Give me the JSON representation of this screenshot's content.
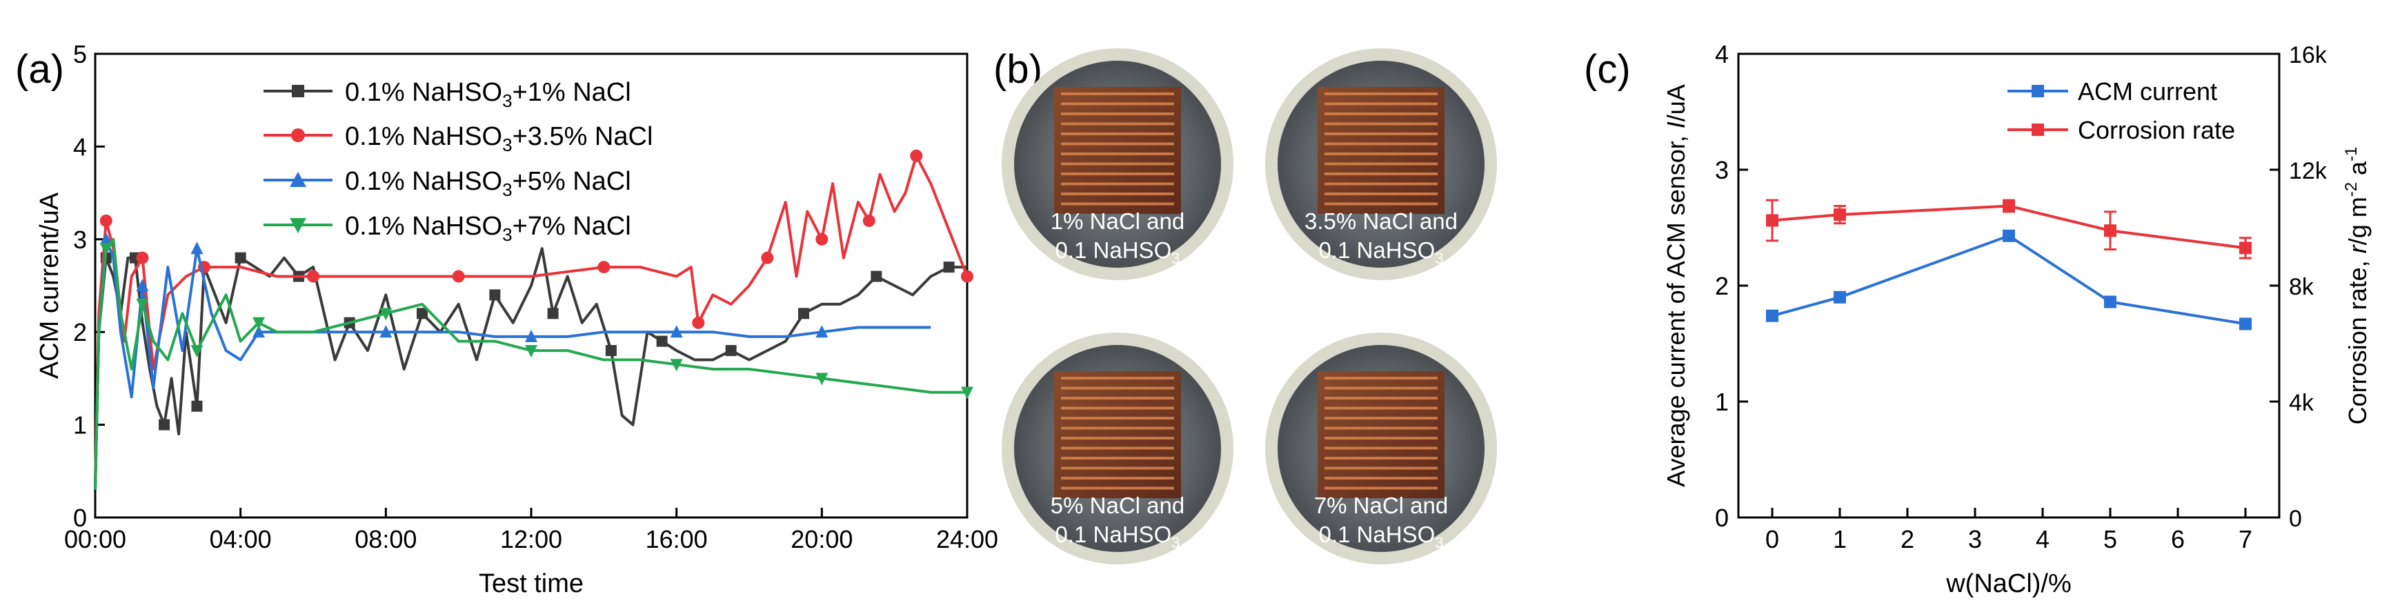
{
  "panel_labels": {
    "a": "(a)",
    "b": "(b)",
    "c": "(c)"
  },
  "colors": {
    "black": "#3a3a3a",
    "red": "#e8343a",
    "blue": "#2a72d6",
    "green": "#25a852",
    "axis": "#000000",
    "dish_rim": "#d9d9cc",
    "dish_bg": "#6f7478",
    "specimen": "#7a3a25",
    "stripe": "#d9864f"
  },
  "photos": {
    "items": [
      {
        "line1": "1% NaCl and",
        "line2_main": "0.1 NaHSO",
        "line2_sub": "3"
      },
      {
        "line1": "3.5% NaCl and",
        "line2_main": "0.1 NaHSO",
        "line2_sub": "3"
      },
      {
        "line1": "5% NaCl and",
        "line2_main": "0.1 NaHSO",
        "line2_sub": "3"
      },
      {
        "line1": "7% NaCl and",
        "line2_main": "0.1 NaHSO",
        "line2_sub": "3"
      }
    ]
  },
  "chart_data": [
    {
      "id": "a",
      "type": "line",
      "xlabel": "Test time",
      "ylabel": "ACM current/uA",
      "xlim": [
        0,
        24
      ],
      "ylim": [
        0,
        5
      ],
      "xticks": [
        0,
        4,
        8,
        12,
        16,
        20,
        24
      ],
      "xtick_labels": [
        "00:00",
        "04:00",
        "08:00",
        "12:00",
        "16:00",
        "20:00",
        "24:00"
      ],
      "yticks": [
        0,
        1,
        2,
        3,
        4,
        5
      ],
      "ytick_labels": [
        "0",
        "1",
        "2",
        "3",
        "4",
        "5"
      ],
      "legend_position": "top-center",
      "series": [
        {
          "name_pre": "0.1% NaHSO",
          "name_sub": "3",
          "name_post": "+1% NaCl",
          "color": "black",
          "marker": "square",
          "x": [
            0,
            0.1,
            0.3,
            0.5,
            0.7,
            0.9,
            1.1,
            1.3,
            1.5,
            1.7,
            1.9,
            2.1,
            2.3,
            2.5,
            2.8,
            3.0,
            3.3,
            3.6,
            4.0,
            4.4,
            4.8,
            5.2,
            5.6,
            6.0,
            6.3,
            6.6,
            7.0,
            7.5,
            8.0,
            8.5,
            9.0,
            9.5,
            10.0,
            10.5,
            11.0,
            11.5,
            12.0,
            12.3,
            12.6,
            13.0,
            13.4,
            13.8,
            14.2,
            14.5,
            14.8,
            15.2,
            15.6,
            16.0,
            16.5,
            17.0,
            17.5,
            18.0,
            18.5,
            19.0,
            19.5,
            20.0,
            20.5,
            21.0,
            21.5,
            22.0,
            22.5,
            23.0,
            23.5,
            24.0
          ],
          "y": [
            0.3,
            2.0,
            2.8,
            2.6,
            2.2,
            2.8,
            2.8,
            2.1,
            1.6,
            1.2,
            1.0,
            1.5,
            0.9,
            2.0,
            1.2,
            2.7,
            2.4,
            2.1,
            2.8,
            2.7,
            2.6,
            2.8,
            2.6,
            2.7,
            2.2,
            1.7,
            2.1,
            1.8,
            2.4,
            1.6,
            2.2,
            2.0,
            2.3,
            1.7,
            2.4,
            2.1,
            2.5,
            2.9,
            2.2,
            2.6,
            2.1,
            2.3,
            1.8,
            1.1,
            1.0,
            2.0,
            1.9,
            1.8,
            1.7,
            1.7,
            1.8,
            1.7,
            1.8,
            1.9,
            2.2,
            2.3,
            2.3,
            2.4,
            2.6,
            2.5,
            2.4,
            2.6,
            2.7,
            2.7
          ]
        },
        {
          "name_pre": "0.1% NaHSO",
          "name_sub": "3",
          "name_post": "+3.5% NaCl",
          "color": "red",
          "marker": "circle",
          "x": [
            0,
            0.1,
            0.3,
            0.5,
            0.8,
            1.0,
            1.3,
            1.6,
            2.0,
            2.5,
            3.0,
            3.5,
            4.0,
            5.0,
            6.0,
            7.0,
            8.0,
            9.0,
            10.0,
            11.0,
            12.0,
            13.0,
            14.0,
            15.0,
            16.0,
            16.4,
            16.6,
            17.0,
            17.5,
            18.0,
            18.5,
            19.0,
            19.3,
            19.6,
            20.0,
            20.3,
            20.6,
            21.0,
            21.3,
            21.6,
            22.0,
            22.3,
            22.6,
            23.0,
            23.3,
            23.6,
            24.0
          ],
          "y": [
            0.4,
            2.2,
            3.2,
            2.9,
            1.9,
            2.6,
            2.8,
            1.6,
            2.4,
            2.6,
            2.7,
            2.7,
            2.7,
            2.6,
            2.6,
            2.6,
            2.6,
            2.6,
            2.6,
            2.6,
            2.6,
            2.65,
            2.7,
            2.7,
            2.6,
            2.7,
            2.1,
            2.4,
            2.3,
            2.5,
            2.8,
            3.4,
            2.6,
            3.3,
            3.0,
            3.6,
            2.8,
            3.4,
            3.2,
            3.7,
            3.3,
            3.5,
            3.9,
            3.6,
            3.3,
            3.0,
            2.6
          ]
        },
        {
          "name_pre": "0.1% NaHSO",
          "name_sub": "3",
          "name_post": "+5% NaCl",
          "color": "blue",
          "marker": "triangle-up",
          "x": [
            0,
            0.1,
            0.3,
            0.5,
            0.7,
            1.0,
            1.3,
            1.6,
            2.0,
            2.4,
            2.8,
            3.2,
            3.6,
            4.0,
            4.5,
            5.0,
            6.0,
            7.0,
            8.0,
            9.0,
            10.0,
            11.0,
            12.0,
            13.0,
            14.0,
            15.0,
            16.0,
            17.0,
            18.0,
            19.0,
            20.0,
            21.0,
            22.0,
            23.0
          ],
          "y": [
            0.3,
            2.0,
            3.0,
            2.8,
            2.0,
            1.3,
            2.5,
            1.4,
            2.7,
            1.8,
            2.9,
            2.2,
            1.8,
            1.7,
            2.0,
            2.0,
            2.0,
            2.0,
            2.0,
            2.0,
            2.0,
            1.95,
            1.95,
            1.95,
            2.0,
            2.0,
            2.0,
            2.0,
            1.95,
            1.95,
            2.0,
            2.05,
            2.05,
            2.05
          ]
        },
        {
          "name_pre": "0.1% NaHSO",
          "name_sub": "3",
          "name_post": "+7% NaCl",
          "color": "green",
          "marker": "triangle-down",
          "x": [
            0,
            0.1,
            0.3,
            0.5,
            0.7,
            1.0,
            1.3,
            1.6,
            2.0,
            2.4,
            2.8,
            3.2,
            3.6,
            4.0,
            4.5,
            5.0,
            6.0,
            7.0,
            8.0,
            9.0,
            10.0,
            11.0,
            12.0,
            13.0,
            14.0,
            15.0,
            16.0,
            17.0,
            18.0,
            19.0,
            20.0,
            21.0,
            22.0,
            23.0,
            24.0
          ],
          "y": [
            0.3,
            2.0,
            2.9,
            3.0,
            2.2,
            1.6,
            2.3,
            1.9,
            1.7,
            2.2,
            1.8,
            2.1,
            2.4,
            1.9,
            2.1,
            2.0,
            2.0,
            2.1,
            2.2,
            2.3,
            1.9,
            1.9,
            1.8,
            1.8,
            1.7,
            1.7,
            1.65,
            1.6,
            1.6,
            1.55,
            1.5,
            1.45,
            1.4,
            1.35,
            1.35
          ]
        }
      ]
    },
    {
      "id": "c",
      "type": "line",
      "xlabel": "w(NaCl)/%",
      "ylabel_left": "Average current of ACM sensor, I/uA",
      "ylabel_left_pre": "Average current of ACM sensor, ",
      "ylabel_left_italic": "I",
      "ylabel_left_post": "/uA",
      "ylabel_right_pre": "Corrosion rate, ",
      "ylabel_right_italic": "r",
      "ylabel_right_mid": "/g m",
      "ylabel_right_sup1": "-2",
      "ylabel_right_mid2": " a",
      "ylabel_right_sup2": "-1",
      "xlim": [
        -0.5,
        7.5
      ],
      "ylim_left": [
        0,
        4
      ],
      "ylim_right": [
        0,
        16000
      ],
      "xticks": [
        0,
        1,
        2,
        3,
        4,
        5,
        6,
        7
      ],
      "xtick_labels": [
        "0",
        "1",
        "2",
        "3",
        "4",
        "5",
        "6",
        "7"
      ],
      "yticks_left": [
        0,
        1,
        2,
        3,
        4
      ],
      "ytick_labels_left": [
        "0",
        "1",
        "2",
        "3",
        "4"
      ],
      "yticks_right": [
        0,
        4000,
        8000,
        12000,
        16000
      ],
      "ytick_labels_right": [
        "0",
        "4k",
        "8k",
        "12k",
        "16k"
      ],
      "legend_position": "top-right",
      "series": [
        {
          "name": "ACM current",
          "color": "blue",
          "marker": "square",
          "axis": "left",
          "x": [
            0,
            1,
            3.5,
            5,
            7
          ],
          "y": [
            1.74,
            1.9,
            2.43,
            1.86,
            1.67
          ]
        },
        {
          "name": "Corrosion rate",
          "color": "red",
          "marker": "square",
          "axis": "right",
          "x": [
            0,
            1,
            3.5,
            5,
            7
          ],
          "y": [
            10250,
            10450,
            10750,
            9900,
            9300
          ],
          "err": [
            700,
            300,
            200,
            650,
            350
          ]
        }
      ]
    }
  ]
}
